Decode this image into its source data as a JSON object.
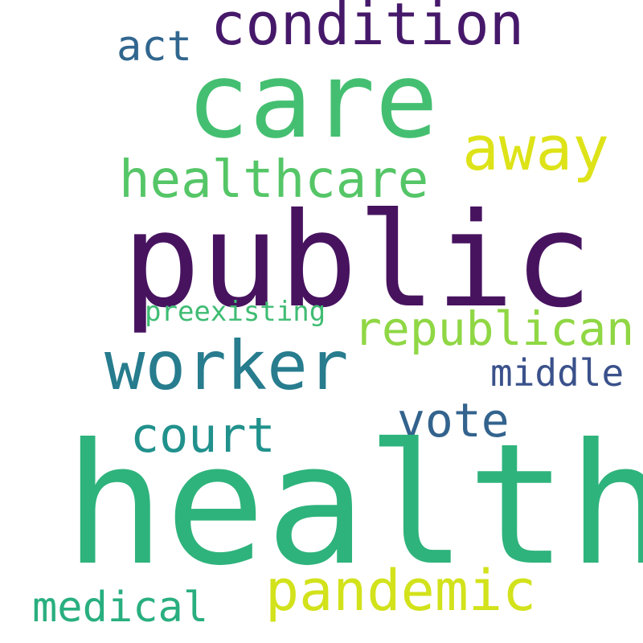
{
  "colors": {
    "background": "#ffffff",
    "health": "#2eb37c",
    "public": "#47135f",
    "care": "#44bf71",
    "condition": "#46186a",
    "worker": "#277c8e",
    "healthcare": "#55c667",
    "away": "#dde318",
    "pandemic": "#d2e21b",
    "republican": "#8fd744",
    "court": "#21918c",
    "vote": "#33638d",
    "medical": "#29af7f",
    "act": "#31668e",
    "middle": "#3a518b",
    "preexisting": "#3fbc73"
  },
  "words": {
    "health": "health",
    "public": "public",
    "care": "care",
    "condition": "condition",
    "worker": "worker",
    "healthcare": "healthcare",
    "away": "away",
    "pandemic": "pandemic",
    "republican": "republican",
    "court": "court",
    "vote": "vote",
    "medical": "medical",
    "act": "act",
    "middle": "middle",
    "preexisting": "preexisting"
  }
}
